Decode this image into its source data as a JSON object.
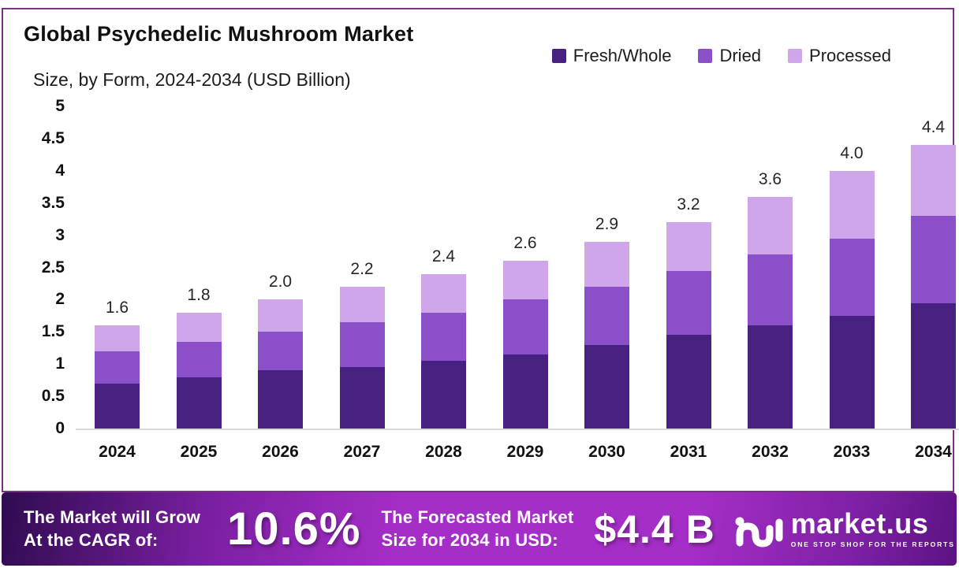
{
  "header": {
    "title": "Global Psychedelic Mushroom Market",
    "subtitle": "Size, by Form, 2024-2034 (USD Billion)"
  },
  "legend": [
    {
      "label": "Fresh/Whole",
      "color": "#472080"
    },
    {
      "label": "Dried",
      "color": "#8b50c9"
    },
    {
      "label": "Processed",
      "color": "#cfa6ea"
    }
  ],
  "chart_data": {
    "type": "bar",
    "stacked": true,
    "title": "Global Psychedelic Mushroom Market Size, by Form, 2024-2034 (USD Billion)",
    "xlabel": "",
    "ylabel": "",
    "categories": [
      "2024",
      "2025",
      "2026",
      "2027",
      "2028",
      "2029",
      "2030",
      "2031",
      "2032",
      "2033",
      "2034"
    ],
    "series": [
      {
        "name": "Fresh/Whole",
        "color": "#472080",
        "values": [
          0.7,
          0.8,
          0.9,
          0.95,
          1.05,
          1.15,
          1.3,
          1.45,
          1.6,
          1.75,
          1.95
        ]
      },
      {
        "name": "Dried",
        "color": "#8b50c9",
        "values": [
          0.5,
          0.55,
          0.6,
          0.7,
          0.75,
          0.85,
          0.9,
          1.0,
          1.1,
          1.2,
          1.35
        ]
      },
      {
        "name": "Processed",
        "color": "#cfa6ea",
        "values": [
          0.4,
          0.45,
          0.5,
          0.55,
          0.6,
          0.6,
          0.7,
          0.75,
          0.9,
          1.05,
          1.1
        ]
      }
    ],
    "totals": [
      "1.6",
      "1.8",
      "2.0",
      "2.2",
      "2.4",
      "2.6",
      "2.9",
      "3.2",
      "3.6",
      "4.0",
      "4.4"
    ],
    "ylim": [
      0,
      5
    ],
    "yticks": [
      "5",
      "4.5",
      "4",
      "3.5",
      "3",
      "2.5",
      "2",
      "1.5",
      "1",
      "0.5",
      "0"
    ],
    "grid": false,
    "legend_position": "top-right"
  },
  "banner": {
    "cagr_label_line1": "The Market will Grow",
    "cagr_label_line2": "At the CAGR of:",
    "cagr_value": "10.6%",
    "forecast_label_line1": "The Forecasted Market",
    "forecast_label_line2": "Size for 2034 in USD:",
    "forecast_value": "$4.4 B",
    "logo_name": "market.us",
    "logo_tagline": "ONE STOP SHOP FOR THE REPORTS"
  }
}
